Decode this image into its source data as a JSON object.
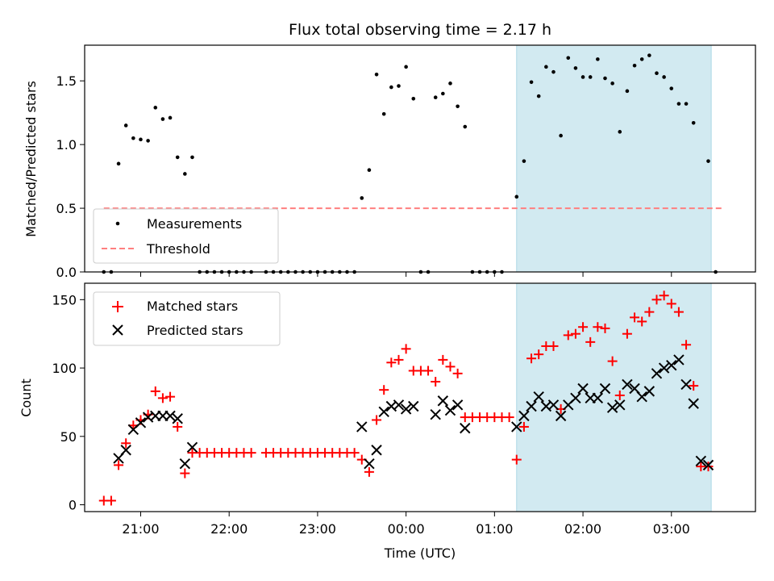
{
  "chart_data": [
    {
      "type": "scatter",
      "title": "Flux total observing time = 2.17 h",
      "xlabel": "",
      "ylabel": "Matched/Predicted stars",
      "xlim": [
        "20:22",
        "03:57"
      ],
      "ylim": [
        0,
        1.78
      ],
      "yticks": [
        0.0,
        0.5,
        1.0,
        1.5
      ],
      "ytick_labels": [
        "0.0",
        "0.5",
        "1.0",
        "1.5"
      ],
      "legend": {
        "placement": "lower-left",
        "entries": [
          "Measurements",
          "Threshold"
        ]
      },
      "grid": false,
      "highlight": {
        "x_start": "01:15",
        "x_end": "03:27",
        "color": "#add8e6"
      },
      "threshold": {
        "name": "Threshold",
        "y": 0.5,
        "x_start": "20:35",
        "x_end": "03:35",
        "color": "#ff7f7f"
      },
      "series": [
        {
          "name": "Measurements",
          "marker": "dot",
          "color": "#000000",
          "points": [
            [
              "20:35",
              0
            ],
            [
              "20:40",
              0
            ],
            [
              "20:45",
              0.85
            ],
            [
              "20:50",
              1.15
            ],
            [
              "20:55",
              1.05
            ],
            [
              "21:00",
              1.04
            ],
            [
              "21:05",
              1.03
            ],
            [
              "21:10",
              1.29
            ],
            [
              "21:15",
              1.2
            ],
            [
              "21:20",
              1.21
            ],
            [
              "21:25",
              0.9
            ],
            [
              "21:30",
              0.77
            ],
            [
              "21:35",
              0.9
            ],
            [
              "21:40",
              0
            ],
            [
              "21:45",
              0
            ],
            [
              "21:50",
              0
            ],
            [
              "21:55",
              0
            ],
            [
              "22:00",
              0
            ],
            [
              "22:05",
              0
            ],
            [
              "22:10",
              0
            ],
            [
              "22:15",
              0
            ],
            [
              "22:25",
              0
            ],
            [
              "22:30",
              0
            ],
            [
              "22:35",
              0
            ],
            [
              "22:40",
              0
            ],
            [
              "22:45",
              0
            ],
            [
              "22:50",
              0
            ],
            [
              "22:55",
              0
            ],
            [
              "23:00",
              0
            ],
            [
              "23:05",
              0
            ],
            [
              "23:10",
              0
            ],
            [
              "23:15",
              0
            ],
            [
              "23:20",
              0
            ],
            [
              "23:25",
              0
            ],
            [
              "23:30",
              0.58
            ],
            [
              "23:35",
              0.8
            ],
            [
              "23:40",
              1.55
            ],
            [
              "23:45",
              1.24
            ],
            [
              "23:50",
              1.45
            ],
            [
              "23:55",
              1.46
            ],
            [
              "00:00",
              1.61
            ],
            [
              "00:05",
              1.36
            ],
            [
              "00:10",
              0
            ],
            [
              "00:15",
              0
            ],
            [
              "00:20",
              1.37
            ],
            [
              "00:25",
              1.4
            ],
            [
              "00:30",
              1.48
            ],
            [
              "00:35",
              1.3
            ],
            [
              "00:40",
              1.14
            ],
            [
              "00:45",
              0
            ],
            [
              "00:50",
              0
            ],
            [
              "00:55",
              0
            ],
            [
              "01:00",
              0
            ],
            [
              "01:05",
              0
            ],
            [
              "01:15",
              0.59
            ],
            [
              "01:20",
              0.87
            ],
            [
              "01:25",
              1.49
            ],
            [
              "01:30",
              1.38
            ],
            [
              "01:35",
              1.61
            ],
            [
              "01:40",
              1.57
            ],
            [
              "01:45",
              1.07
            ],
            [
              "01:50",
              1.68
            ],
            [
              "01:55",
              1.6
            ],
            [
              "02:00",
              1.53
            ],
            [
              "02:05",
              1.53
            ],
            [
              "02:10",
              1.67
            ],
            [
              "02:15",
              1.52
            ],
            [
              "02:20",
              1.48
            ],
            [
              "02:25",
              1.1
            ],
            [
              "02:30",
              1.42
            ],
            [
              "02:35",
              1.62
            ],
            [
              "02:40",
              1.67
            ],
            [
              "02:45",
              1.7
            ],
            [
              "02:50",
              1.56
            ],
            [
              "02:55",
              1.53
            ],
            [
              "03:00",
              1.44
            ],
            [
              "03:05",
              1.32
            ],
            [
              "03:10",
              1.32
            ],
            [
              "03:15",
              1.17
            ],
            [
              "03:25",
              0.87
            ],
            [
              "03:30",
              0
            ]
          ]
        }
      ]
    },
    {
      "type": "scatter",
      "title": "",
      "xlabel": "Time (UTC)",
      "ylabel": "Count",
      "xlim": [
        "20:22",
        "03:57"
      ],
      "ylim": [
        -5,
        162
      ],
      "yticks": [
        0,
        50,
        100,
        150
      ],
      "ytick_labels": [
        "0",
        "50",
        "100",
        "150"
      ],
      "xticks": [
        "21:00",
        "22:00",
        "23:00",
        "00:00",
        "01:00",
        "02:00",
        "03:00"
      ],
      "legend": {
        "placement": "upper-left",
        "entries": [
          "Matched stars",
          "Predicted stars"
        ]
      },
      "grid": false,
      "highlight": {
        "x_start": "01:15",
        "x_end": "03:27",
        "color": "#add8e6"
      },
      "series": [
        {
          "name": "Matched stars",
          "marker": "plus",
          "color": "#ff0000",
          "points": [
            [
              "20:35",
              3
            ],
            [
              "20:40",
              3
            ],
            [
              "20:45",
              29
            ],
            [
              "20:50",
              45
            ],
            [
              "20:55",
              58
            ],
            [
              "21:00",
              62
            ],
            [
              "21:05",
              66
            ],
            [
              "21:10",
              83
            ],
            [
              "21:15",
              78
            ],
            [
              "21:20",
              79
            ],
            [
              "21:25",
              57
            ],
            [
              "21:30",
              23
            ],
            [
              "21:35",
              38
            ],
            [
              "21:40",
              38
            ],
            [
              "21:45",
              38
            ],
            [
              "21:50",
              38
            ],
            [
              "21:55",
              38
            ],
            [
              "22:00",
              38
            ],
            [
              "22:05",
              38
            ],
            [
              "22:10",
              38
            ],
            [
              "22:15",
              38
            ],
            [
              "22:25",
              38
            ],
            [
              "22:30",
              38
            ],
            [
              "22:35",
              38
            ],
            [
              "22:40",
              38
            ],
            [
              "22:45",
              38
            ],
            [
              "22:50",
              38
            ],
            [
              "22:55",
              38
            ],
            [
              "23:00",
              38
            ],
            [
              "23:05",
              38
            ],
            [
              "23:10",
              38
            ],
            [
              "23:15",
              38
            ],
            [
              "23:20",
              38
            ],
            [
              "23:25",
              38
            ],
            [
              "23:30",
              33
            ],
            [
              "23:35",
              24
            ],
            [
              "23:40",
              62
            ],
            [
              "23:45",
              84
            ],
            [
              "23:50",
              104
            ],
            [
              "23:55",
              106
            ],
            [
              "00:00",
              114
            ],
            [
              "00:05",
              98
            ],
            [
              "00:10",
              98
            ],
            [
              "00:15",
              98
            ],
            [
              "00:20",
              90
            ],
            [
              "00:25",
              106
            ],
            [
              "00:30",
              101
            ],
            [
              "00:35",
              96
            ],
            [
              "00:40",
              64
            ],
            [
              "00:45",
              64
            ],
            [
              "00:50",
              64
            ],
            [
              "00:55",
              64
            ],
            [
              "01:00",
              64
            ],
            [
              "01:05",
              64
            ],
            [
              "01:10",
              64
            ],
            [
              "01:15",
              33
            ],
            [
              "01:20",
              57
            ],
            [
              "01:25",
              107
            ],
            [
              "01:30",
              110
            ],
            [
              "01:35",
              116
            ],
            [
              "01:40",
              116
            ],
            [
              "01:45",
              70
            ],
            [
              "01:50",
              124
            ],
            [
              "01:55",
              125
            ],
            [
              "02:00",
              130
            ],
            [
              "02:05",
              119
            ],
            [
              "02:10",
              130
            ],
            [
              "02:15",
              129
            ],
            [
              "02:20",
              105
            ],
            [
              "02:25",
              80
            ],
            [
              "02:30",
              125
            ],
            [
              "02:35",
              137
            ],
            [
              "02:40",
              134
            ],
            [
              "02:45",
              141
            ],
            [
              "02:50",
              150
            ],
            [
              "02:55",
              153
            ],
            [
              "03:00",
              147
            ],
            [
              "03:05",
              141
            ],
            [
              "03:10",
              117
            ],
            [
              "03:15",
              87
            ],
            [
              "03:20",
              28
            ],
            [
              "03:25",
              28
            ]
          ]
        },
        {
          "name": "Predicted stars",
          "marker": "x",
          "color": "#000000",
          "points": [
            [
              "20:45",
              34
            ],
            [
              "20:50",
              40
            ],
            [
              "20:55",
              55
            ],
            [
              "21:00",
              60
            ],
            [
              "21:05",
              64
            ],
            [
              "21:10",
              65
            ],
            [
              "21:15",
              65
            ],
            [
              "21:20",
              65
            ],
            [
              "21:25",
              63
            ],
            [
              "21:30",
              30
            ],
            [
              "21:35",
              42
            ],
            [
              "23:30",
              57
            ],
            [
              "23:35",
              30
            ],
            [
              "23:40",
              40
            ],
            [
              "23:45",
              68
            ],
            [
              "23:50",
              72
            ],
            [
              "23:55",
              73
            ],
            [
              "00:00",
              70
            ],
            [
              "00:05",
              72
            ],
            [
              "00:20",
              66
            ],
            [
              "00:25",
              76
            ],
            [
              "00:30",
              69
            ],
            [
              "00:35",
              73
            ],
            [
              "00:40",
              56
            ],
            [
              "01:15",
              57
            ],
            [
              "01:20",
              65
            ],
            [
              "01:25",
              72
            ],
            [
              "01:30",
              79
            ],
            [
              "01:35",
              72
            ],
            [
              "01:40",
              73
            ],
            [
              "01:45",
              65
            ],
            [
              "01:50",
              73
            ],
            [
              "01:55",
              78
            ],
            [
              "02:00",
              85
            ],
            [
              "02:05",
              78
            ],
            [
              "02:10",
              78
            ],
            [
              "02:15",
              85
            ],
            [
              "02:20",
              71
            ],
            [
              "02:25",
              73
            ],
            [
              "02:30",
              88
            ],
            [
              "02:35",
              85
            ],
            [
              "02:40",
              79
            ],
            [
              "02:45",
              83
            ],
            [
              "02:50",
              96
            ],
            [
              "02:55",
              100
            ],
            [
              "03:00",
              102
            ],
            [
              "03:05",
              106
            ],
            [
              "03:10",
              88
            ],
            [
              "03:15",
              74
            ],
            [
              "03:20",
              32
            ],
            [
              "03:25",
              29
            ]
          ]
        }
      ]
    }
  ]
}
